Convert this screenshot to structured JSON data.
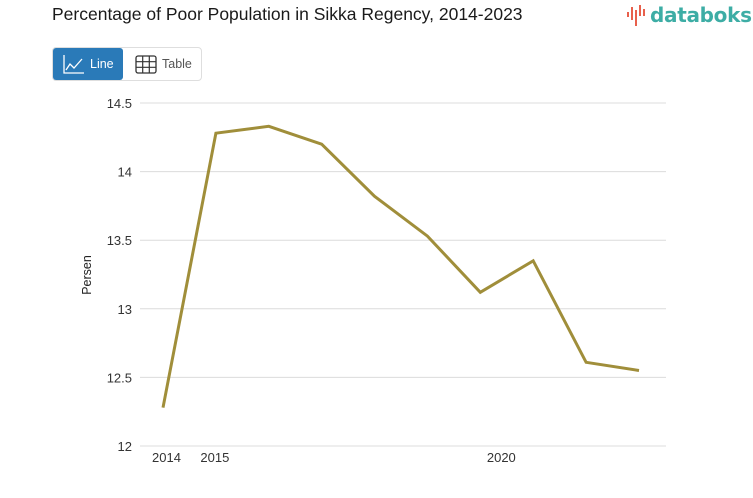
{
  "header": {
    "title": "Percentage of Poor Population in Sikka Regency, 2014-2023",
    "logo_text": "databoks",
    "logo_icon": "bar-wave-icon",
    "logo_color": "#3dada5",
    "logo_icon_color": "#e8604c"
  },
  "view_toggle": {
    "line_label": "Line",
    "line_icon": "line-chart-icon",
    "table_label": "Table",
    "table_icon": "table-grid-icon",
    "active": "Line",
    "active_color": "#2a7ab8"
  },
  "chart_data": {
    "type": "line",
    "title": "Percentage of Poor Population in Sikka Regency, 2014-2023",
    "xlabel": "",
    "ylabel": "Persen",
    "x": [
      2014,
      2015,
      2016,
      2017,
      2018,
      2019,
      2020,
      2021,
      2022,
      2023
    ],
    "x_tick_labels": [
      "2014",
      "2015",
      "2020"
    ],
    "x_tick_values": [
      2014,
      2015,
      2020
    ],
    "y_tick_labels": [
      "12",
      "12.5",
      "13",
      "13.5",
      "14",
      "14.5"
    ],
    "y_tick_values": [
      12,
      12.5,
      13,
      13.5,
      14,
      14.5
    ],
    "ylim": [
      12,
      14.5
    ],
    "grid": true,
    "legend": "none",
    "series": [
      {
        "name": "Persen",
        "color": "#a08e3a",
        "values": [
          12.28,
          14.28,
          14.33,
          14.2,
          13.82,
          13.53,
          13.12,
          13.35,
          12.61,
          12.55
        ]
      }
    ]
  }
}
